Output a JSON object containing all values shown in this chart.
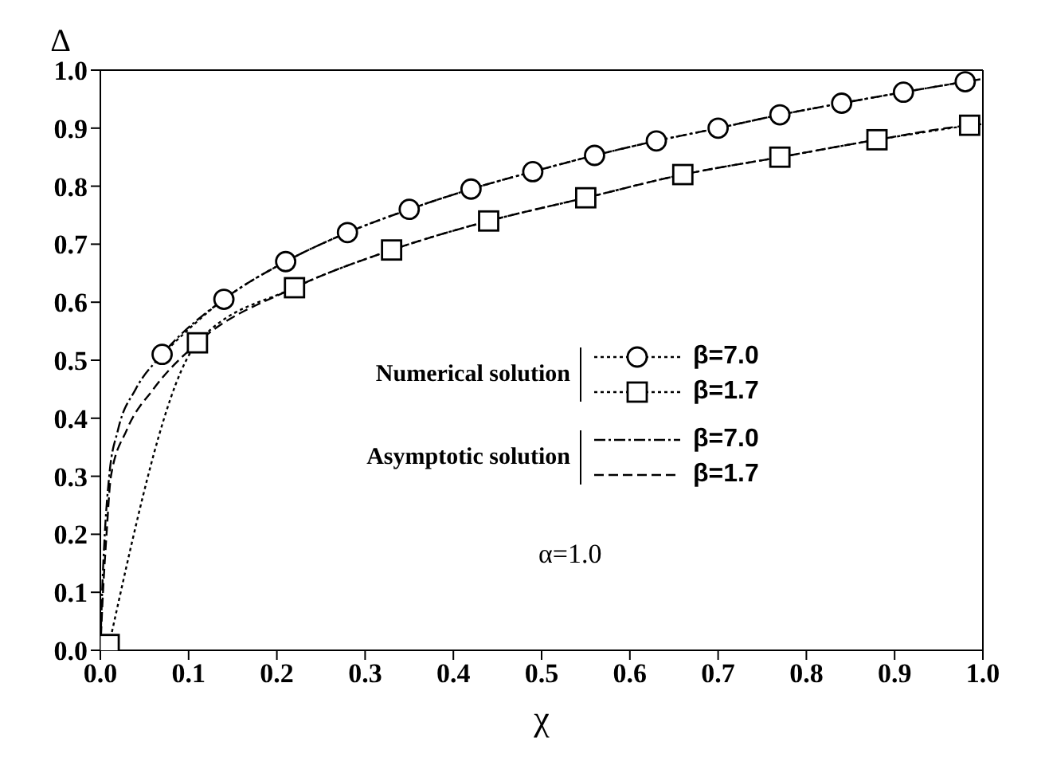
{
  "chart_data": {
    "type": "line",
    "xlabel": "χ",
    "ylabel": "Δ",
    "xlim": [
      0,
      1
    ],
    "ylim": [
      0,
      1
    ],
    "xticks": [
      {
        "value": 0,
        "label": "0.0"
      },
      {
        "value": 0.1,
        "label": "0.1"
      },
      {
        "value": 0.2,
        "label": "0.2"
      },
      {
        "value": 0.3,
        "label": "0.3"
      },
      {
        "value": 0.4,
        "label": "0.4"
      },
      {
        "value": 0.5,
        "label": "0.5"
      },
      {
        "value": 0.6,
        "label": "0.6"
      },
      {
        "value": 0.7,
        "label": "0.7"
      },
      {
        "value": 0.8,
        "label": "0.8"
      },
      {
        "value": 0.9,
        "label": "0.9"
      },
      {
        "value": 1,
        "label": "1.0"
      }
    ],
    "yticks": [
      {
        "value": 0,
        "label": "0.0"
      },
      {
        "value": 0.1,
        "label": "0.1"
      },
      {
        "value": 0.2,
        "label": "0.2"
      },
      {
        "value": 0.3,
        "label": "0.3"
      },
      {
        "value": 0.4,
        "label": "0.4"
      },
      {
        "value": 0.5,
        "label": "0.5"
      },
      {
        "value": 0.6,
        "label": "0.6"
      },
      {
        "value": 0.7,
        "label": "0.7"
      },
      {
        "value": 0.8,
        "label": "0.8"
      },
      {
        "value": 0.9,
        "label": "0.9"
      },
      {
        "value": 1,
        "label": "1.0"
      }
    ],
    "grid": false,
    "legend": "center",
    "annotations": [
      "Numerical solution",
      "Asymptotic solution",
      "α=1.0"
    ],
    "series": [
      {
        "name": "β=7.0",
        "color": "#000000",
        "marker": "circle",
        "line_style": "dotted",
        "x": [
          0.07,
          0.14,
          0.21,
          0.28,
          0.35,
          0.42,
          0.49,
          0.56,
          0.63,
          0.7,
          0.77,
          0.84,
          0.91,
          0.98
        ],
        "values": [
          0.51,
          0.605,
          0.67,
          0.72,
          0.76,
          0.795,
          0.825,
          0.853,
          0.878,
          0.9,
          0.923,
          0.943,
          0.962,
          0.98
        ]
      },
      {
        "name": "β=1.7",
        "color": "#000000",
        "marker": "square",
        "line_style": "dotted",
        "x": [
          0.01,
          0.11,
          0.22,
          0.33,
          0.44,
          0.55,
          0.66,
          0.77,
          0.88,
          0.985
        ],
        "values": [
          0.01,
          0.53,
          0.625,
          0.69,
          0.74,
          0.78,
          0.82,
          0.85,
          0.88,
          0.905
        ]
      },
      {
        "name": "β=7.0",
        "color": "#000000",
        "marker": "none",
        "line_style": "dashdot",
        "x": [
          0,
          0.002,
          0.005,
          0.01,
          0.02,
          0.04,
          0.07,
          0.14,
          0.21,
          0.28,
          0.35,
          0.42,
          0.49,
          0.56,
          0.63,
          0.7,
          0.77,
          0.84,
          0.91,
          0.98,
          1
        ],
        "values": [
          0,
          0.1,
          0.2,
          0.3,
          0.38,
          0.45,
          0.51,
          0.605,
          0.67,
          0.72,
          0.76,
          0.795,
          0.825,
          0.853,
          0.878,
          0.9,
          0.923,
          0.943,
          0.962,
          0.98,
          0.985
        ]
      },
      {
        "name": "β=1.7",
        "color": "#000000",
        "marker": "none",
        "line_style": "dashed",
        "x": [
          0,
          0.003,
          0.007,
          0.012,
          0.03,
          0.06,
          0.11,
          0.22,
          0.33,
          0.44,
          0.55,
          0.66,
          0.77,
          0.88,
          0.985,
          1
        ],
        "values": [
          0,
          0.1,
          0.2,
          0.3,
          0.38,
          0.45,
          0.53,
          0.625,
          0.69,
          0.74,
          0.78,
          0.82,
          0.85,
          0.88,
          0.905,
          0.907
        ]
      }
    ]
  }
}
